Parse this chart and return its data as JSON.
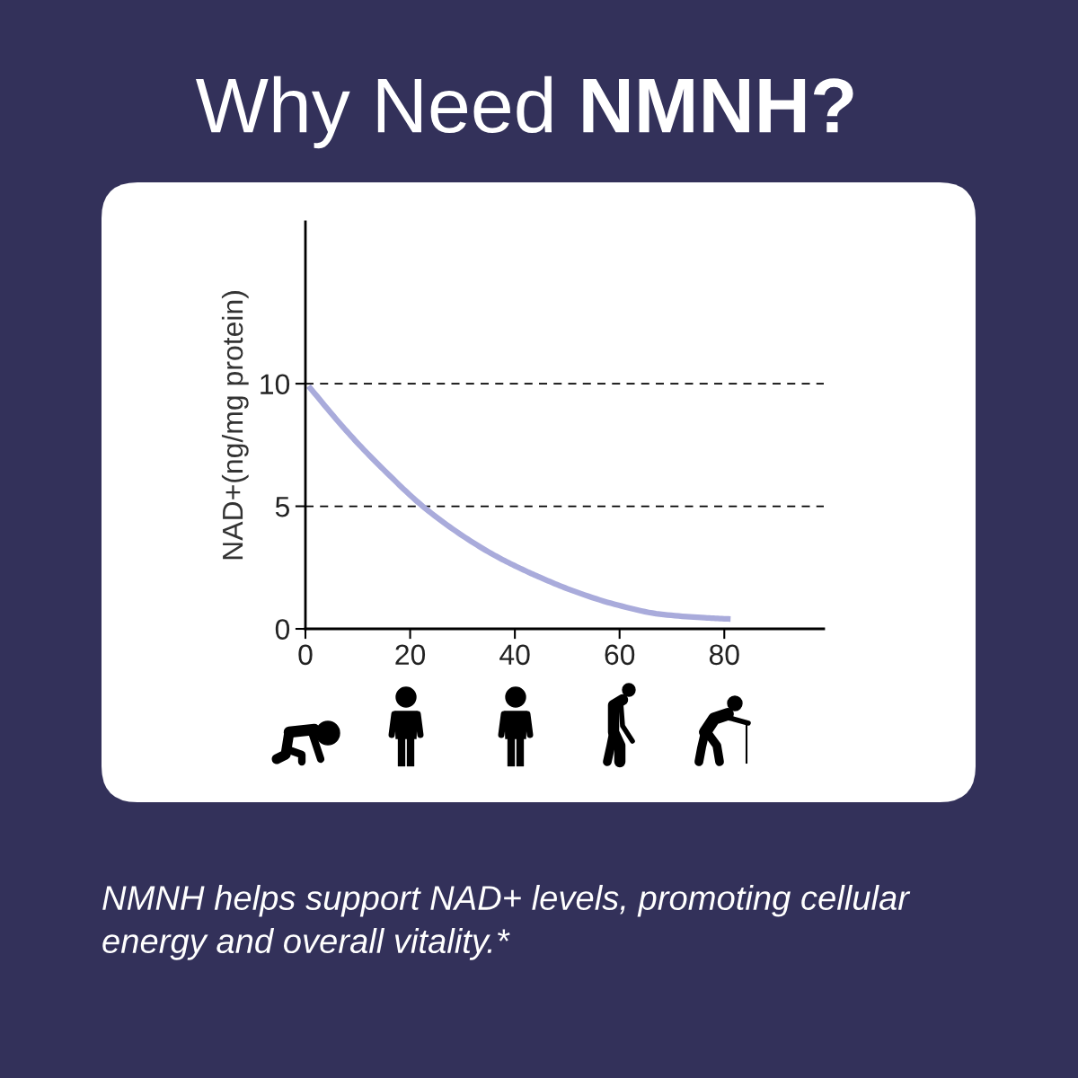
{
  "chart_data": {
    "type": "line",
    "title": "Why Need NMNH?",
    "ylabel": "NAD+(ng/mg protein)",
    "annotations": [
      "NMNH helps support NAD+ levels, promoting cellular energy and overall vitality.*"
    ],
    "x": [
      0.6,
      6.9,
      10.3,
      14.9,
      22.4,
      29.3,
      36.1,
      40.7,
      44.8,
      50.5,
      59.1,
      67.7,
      76.3,
      81.2
    ],
    "series": [
      {
        "color": "#a9abdb",
        "values": [
          9.9,
          8.3,
          7.5,
          6.5,
          5.0,
          3.9,
          3.0,
          2.5,
          2.1,
          1.6,
          1.0,
          0.6,
          0.45,
          0.4
        ]
      }
    ],
    "xlim": [
      0,
      99
    ],
    "ylim": [
      0,
      16.6
    ],
    "xticks": [
      0,
      20,
      40,
      60,
      80
    ],
    "yticks": [
      0,
      5,
      10
    ],
    "grid": "y",
    "line_style": "solid"
  }
}
